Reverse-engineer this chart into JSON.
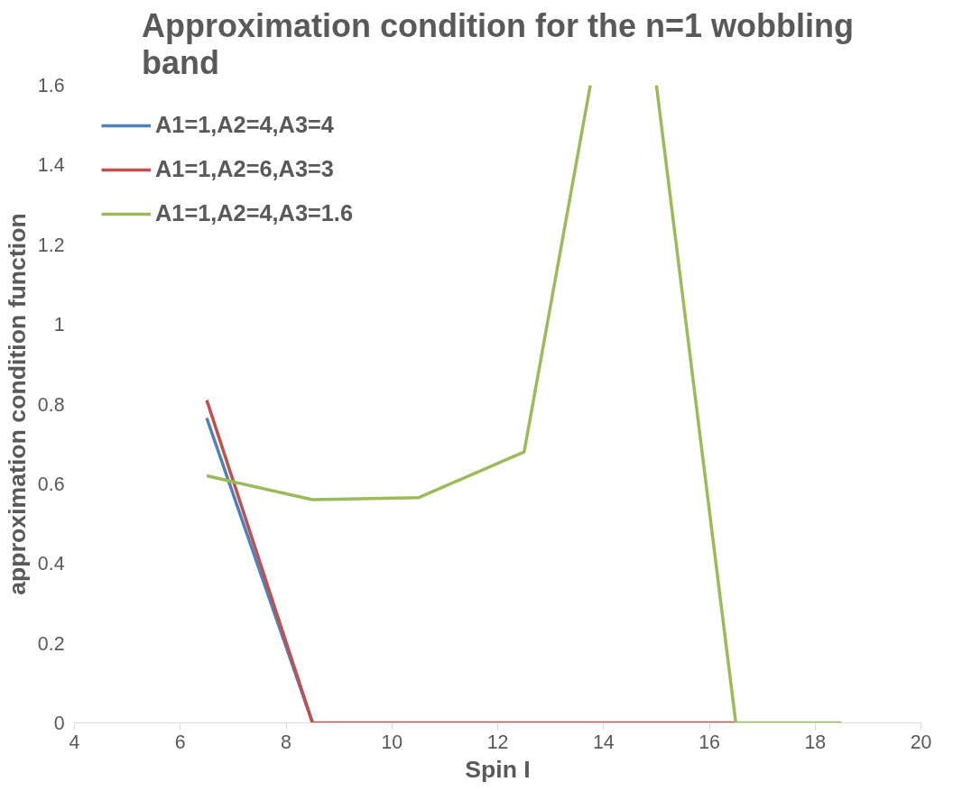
{
  "chart_data": {
    "type": "line",
    "title": "Approximation condition for the n=1 wobbling band",
    "xlabel": "Spin I",
    "ylabel": "approximation condition function",
    "xlim": [
      4,
      20
    ],
    "xticks": [
      4,
      6,
      8,
      10,
      12,
      14,
      16,
      18,
      20
    ],
    "ylim": [
      0,
      1.6
    ],
    "yticks": [
      0,
      0.2,
      0.4,
      0.6,
      0.8,
      1,
      1.2,
      1.4,
      1.6
    ],
    "grid": false,
    "legend": "top left",
    "marker": "none",
    "line_style": "solid",
    "series": [
      {
        "name": "A1=1,A2=4,A3=4",
        "color": "#4f81bd",
        "x": [
          6.5,
          8.5
        ],
        "values": [
          0.765,
          0
        ]
      },
      {
        "name": "A1=1,A2=6,A3=3",
        "color": "#c0504d",
        "x": [
          6.5,
          8.5,
          10.5,
          12.5,
          14.5,
          16.5
        ],
        "values": [
          0.81,
          0,
          0,
          0,
          0,
          0
        ]
      },
      {
        "name": "A1=1,A2=4,A3=1.6",
        "color": "#9bbb59",
        "x": [
          6.5,
          8.5,
          10.5,
          12.5,
          13.75,
          14.5,
          15,
          16.5,
          18.5
        ],
        "values": [
          0.62,
          0.56,
          0.565,
          0.68,
          1.6,
          null,
          1.6,
          0,
          0
        ]
      }
    ]
  }
}
